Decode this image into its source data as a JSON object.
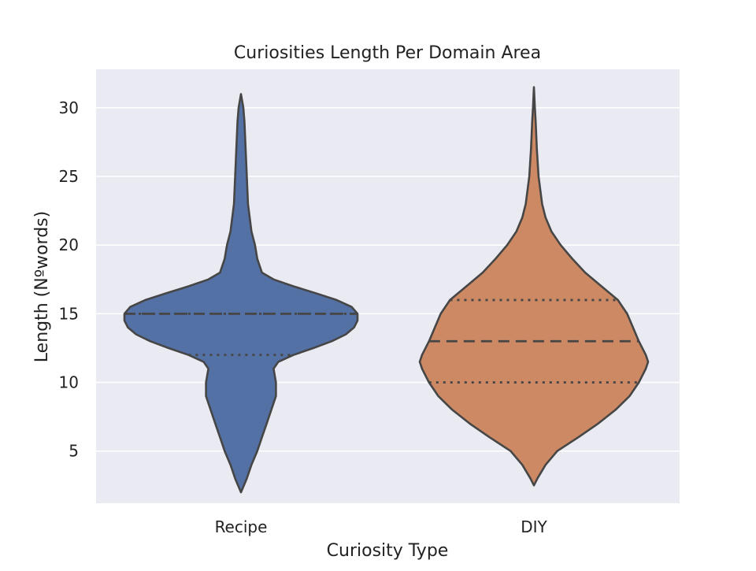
{
  "chart_data": {
    "type": "violin",
    "title": "Curiosities Length Per Domain Area",
    "xlabel": "Curiosity Type",
    "ylabel": "Length (Nºwords)",
    "categories": [
      "Recipe",
      "DIY"
    ],
    "ylim": [
      1.2,
      32.8
    ],
    "yticks": [
      5,
      10,
      15,
      20,
      25,
      30
    ],
    "grid": true,
    "background": "#eaeaf2",
    "series": [
      {
        "category": "Recipe",
        "color": "#5471a6",
        "quartiles": {
          "q1": 12,
          "median": 15,
          "q3": 15
        },
        "range": [
          2,
          31
        ],
        "density_profile": [
          [
            2.0,
            0.0
          ],
          [
            3.0,
            0.05
          ],
          [
            4.0,
            0.09
          ],
          [
            5.0,
            0.14
          ],
          [
            6.0,
            0.18
          ],
          [
            7.0,
            0.22
          ],
          [
            8.0,
            0.26
          ],
          [
            9.0,
            0.3
          ],
          [
            10.0,
            0.3
          ],
          [
            11.0,
            0.28
          ],
          [
            11.5,
            0.32
          ],
          [
            12.0,
            0.45
          ],
          [
            12.5,
            0.62
          ],
          [
            13.0,
            0.78
          ],
          [
            13.5,
            0.9
          ],
          [
            14.0,
            0.97
          ],
          [
            14.5,
            1.0
          ],
          [
            15.0,
            1.0
          ],
          [
            15.5,
            0.95
          ],
          [
            16.0,
            0.82
          ],
          [
            16.5,
            0.64
          ],
          [
            17.0,
            0.45
          ],
          [
            17.5,
            0.28
          ],
          [
            18.0,
            0.18
          ],
          [
            19.0,
            0.14
          ],
          [
            20.0,
            0.12
          ],
          [
            21.0,
            0.09
          ],
          [
            23.0,
            0.06
          ],
          [
            25.0,
            0.05
          ],
          [
            27.0,
            0.04
          ],
          [
            29.0,
            0.03
          ],
          [
            30.0,
            0.02
          ],
          [
            31.0,
            0.0
          ]
        ]
      },
      {
        "category": "DIY",
        "color": "#cc8963",
        "quartiles": {
          "q1": 10,
          "median": 13,
          "q3": 16
        },
        "range": [
          2.5,
          31.5
        ],
        "density_profile": [
          [
            2.5,
            0.0
          ],
          [
            3.0,
            0.03
          ],
          [
            4.0,
            0.1
          ],
          [
            5.0,
            0.2
          ],
          [
            6.0,
            0.38
          ],
          [
            7.0,
            0.55
          ],
          [
            8.0,
            0.7
          ],
          [
            9.0,
            0.82
          ],
          [
            10.0,
            0.9
          ],
          [
            11.0,
            0.96
          ],
          [
            11.5,
            0.98
          ],
          [
            12.0,
            0.96
          ],
          [
            13.0,
            0.9
          ],
          [
            14.0,
            0.85
          ],
          [
            15.0,
            0.8
          ],
          [
            16.0,
            0.72
          ],
          [
            17.0,
            0.58
          ],
          [
            18.0,
            0.44
          ],
          [
            19.0,
            0.33
          ],
          [
            20.0,
            0.23
          ],
          [
            21.0,
            0.15
          ],
          [
            22.0,
            0.1
          ],
          [
            23.0,
            0.07
          ],
          [
            25.0,
            0.04
          ],
          [
            27.0,
            0.025
          ],
          [
            29.0,
            0.015
          ],
          [
            30.0,
            0.008
          ],
          [
            31.5,
            0.0
          ]
        ]
      }
    ]
  }
}
